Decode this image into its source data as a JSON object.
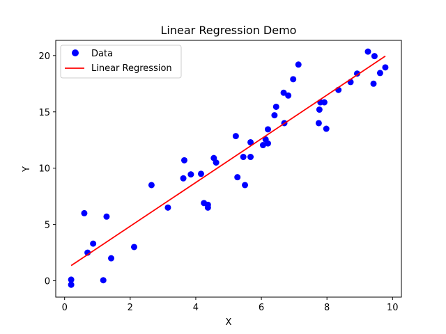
{
  "chart_data": {
    "type": "scatter",
    "title": "Linear Regression Demo",
    "xlabel": "X",
    "ylabel": "Y",
    "xlim": [
      -0.27,
      10.27
    ],
    "ylim": [
      -1.45,
      21.35
    ],
    "xticks": [
      0,
      2,
      4,
      6,
      8,
      10
    ],
    "yticks": [
      0,
      5,
      10,
      15,
      20
    ],
    "xtick_labels": [
      "0",
      "2",
      "4",
      "6",
      "8",
      "10"
    ],
    "ytick_labels": [
      "0",
      "5",
      "10",
      "15",
      "20"
    ],
    "grid": false,
    "legend_position": "upper-left",
    "series": [
      {
        "name": "Data",
        "kind": "scatter",
        "color": "#0000ff",
        "points": [
          [
            0.2,
            0.1
          ],
          [
            0.2,
            -0.35
          ],
          [
            0.6,
            6.0
          ],
          [
            0.7,
            2.5
          ],
          [
            0.87,
            3.3
          ],
          [
            1.18,
            0.05
          ],
          [
            1.28,
            5.7
          ],
          [
            1.42,
            2.0
          ],
          [
            2.12,
            3.0
          ],
          [
            2.65,
            8.5
          ],
          [
            3.15,
            6.5
          ],
          [
            3.62,
            9.1
          ],
          [
            3.65,
            10.7
          ],
          [
            3.85,
            9.45
          ],
          [
            4.16,
            9.5
          ],
          [
            4.25,
            6.9
          ],
          [
            4.37,
            6.75
          ],
          [
            4.37,
            6.5
          ],
          [
            4.55,
            10.9
          ],
          [
            4.62,
            10.5
          ],
          [
            5.22,
            12.85
          ],
          [
            5.27,
            9.2
          ],
          [
            5.45,
            11.0
          ],
          [
            5.5,
            8.5
          ],
          [
            5.67,
            11.0
          ],
          [
            5.67,
            12.3
          ],
          [
            6.05,
            12.05
          ],
          [
            6.13,
            12.55
          ],
          [
            6.2,
            12.2
          ],
          [
            6.2,
            13.45
          ],
          [
            6.4,
            14.7
          ],
          [
            6.45,
            15.45
          ],
          [
            6.68,
            16.7
          ],
          [
            6.7,
            14.0
          ],
          [
            6.82,
            16.45
          ],
          [
            6.97,
            17.9
          ],
          [
            7.13,
            19.2
          ],
          [
            7.75,
            14.0
          ],
          [
            7.77,
            15.2
          ],
          [
            7.8,
            15.85
          ],
          [
            7.92,
            15.85
          ],
          [
            7.98,
            13.5
          ],
          [
            8.35,
            16.95
          ],
          [
            8.72,
            17.65
          ],
          [
            8.92,
            18.4
          ],
          [
            9.25,
            20.35
          ],
          [
            9.42,
            17.5
          ],
          [
            9.45,
            19.95
          ],
          [
            9.62,
            18.45
          ],
          [
            9.78,
            18.95
          ]
        ]
      },
      {
        "name": "Linear Regression",
        "kind": "line",
        "color": "#ff0000",
        "points": [
          [
            0.2,
            1.35
          ],
          [
            9.78,
            19.95
          ]
        ]
      }
    ]
  }
}
